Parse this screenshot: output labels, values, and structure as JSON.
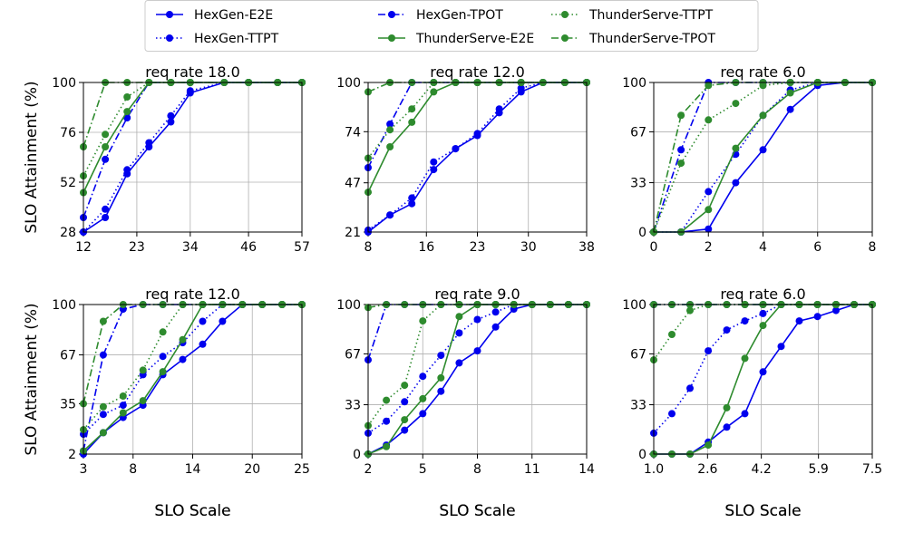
{
  "colors": {
    "hexgen": "#0000ee",
    "thunder": "#2e8b2e"
  },
  "legend": {
    "entries": [
      {
        "label": "HexGen-E2E",
        "series": "hexgen",
        "style": "solid"
      },
      {
        "label": "HexGen-TTPT",
        "series": "hexgen",
        "style": "dotted"
      },
      {
        "label": "HexGen-TPOT",
        "series": "hexgen",
        "style": "dashdot"
      },
      {
        "label": "ThunderServe-E2E",
        "series": "thunder",
        "style": "solid"
      },
      {
        "label": "ThunderServe-TTPT",
        "series": "thunder",
        "style": "dotted"
      },
      {
        "label": "ThunderServe-TPOT",
        "series": "thunder",
        "style": "dashdot"
      }
    ]
  },
  "ylabel": "SLO Attainment (%)",
  "xlabel": "SLO Scale",
  "chart_data": [
    {
      "type": "line",
      "title": "req rate 18.0",
      "xlim": [
        12,
        57
      ],
      "ylim": [
        28,
        100
      ],
      "xticks": [
        12,
        23,
        34,
        46,
        57
      ],
      "yticks": [
        28,
        52,
        76,
        100
      ],
      "x": [
        12,
        16.5,
        21,
        25.5,
        30,
        34,
        41,
        46,
        52,
        57
      ],
      "series": [
        {
          "name": "HexGen-E2E",
          "values": [
            28,
            35,
            56,
            69,
            81,
            95,
            100,
            100,
            100,
            100
          ]
        },
        {
          "name": "HexGen-TTPT",
          "values": [
            28,
            39,
            58,
            71,
            84,
            96,
            100,
            100,
            100,
            100
          ]
        },
        {
          "name": "HexGen-TPOT",
          "values": [
            35,
            63,
            83,
            100,
            100,
            100,
            100,
            100,
            100,
            100
          ]
        },
        {
          "name": "ThunderServe-E2E",
          "values": [
            47,
            69,
            86,
            100,
            100,
            100,
            100,
            100,
            100,
            100
          ]
        },
        {
          "name": "ThunderServe-TTPT",
          "values": [
            55,
            75,
            93,
            100,
            100,
            100,
            100,
            100,
            100,
            100
          ]
        },
        {
          "name": "ThunderServe-TPOT",
          "values": [
            69,
            100,
            100,
            100,
            100,
            100,
            100,
            100,
            100,
            100
          ]
        }
      ]
    },
    {
      "type": "line",
      "title": "req rate 12.0",
      "xlim": [
        8,
        38
      ],
      "ylim": [
        21,
        100
      ],
      "xticks": [
        8,
        16,
        23,
        30,
        38
      ],
      "yticks": [
        21,
        47,
        74,
        100
      ],
      "x": [
        8,
        11,
        14,
        17,
        20,
        23,
        26,
        29,
        32,
        35,
        38
      ],
      "series": [
        {
          "name": "HexGen-E2E",
          "values": [
            21,
            30,
            36,
            54,
            65,
            72,
            84,
            95,
            100,
            100,
            100
          ]
        },
        {
          "name": "HexGen-TTPT",
          "values": [
            22,
            30,
            39,
            58,
            65,
            73,
            86,
            97,
            100,
            100,
            100
          ]
        },
        {
          "name": "HexGen-TPOT",
          "values": [
            55,
            78,
            100,
            100,
            100,
            100,
            100,
            100,
            100,
            100,
            100
          ]
        },
        {
          "name": "ThunderServe-E2E",
          "values": [
            42,
            66,
            79,
            95,
            100,
            100,
            100,
            100,
            100,
            100,
            100
          ]
        },
        {
          "name": "ThunderServe-TTPT",
          "values": [
            60,
            75,
            86,
            100,
            100,
            100,
            100,
            100,
            100,
            100,
            100
          ]
        },
        {
          "name": "ThunderServe-TPOT",
          "values": [
            95,
            100,
            100,
            100,
            100,
            100,
            100,
            100,
            100,
            100,
            100
          ]
        }
      ]
    },
    {
      "type": "line",
      "title": "req rate 6.0",
      "xlim": [
        0,
        8
      ],
      "ylim": [
        0,
        100
      ],
      "xticks": [
        0,
        2,
        4,
        6,
        8
      ],
      "yticks": [
        0,
        33,
        67,
        100
      ],
      "x": [
        0,
        1,
        2,
        3,
        4,
        5,
        6,
        7,
        8
      ],
      "series": [
        {
          "name": "HexGen-E2E",
          "values": [
            0,
            0,
            2,
            33,
            55,
            82,
            98,
            100,
            100
          ]
        },
        {
          "name": "HexGen-TTPT",
          "values": [
            0,
            0,
            27,
            52,
            78,
            95,
            100,
            100,
            100
          ]
        },
        {
          "name": "HexGen-TPOT",
          "values": [
            0,
            55,
            100,
            100,
            100,
            100,
            100,
            100,
            100
          ]
        },
        {
          "name": "ThunderServe-E2E",
          "values": [
            0,
            0,
            15,
            56,
            78,
            93,
            100,
            100,
            100
          ]
        },
        {
          "name": "ThunderServe-TTPT",
          "values": [
            0,
            46,
            75,
            86,
            98,
            100,
            100,
            100,
            100
          ]
        },
        {
          "name": "ThunderServe-TPOT",
          "values": [
            0,
            78,
            98,
            100,
            100,
            100,
            100,
            100,
            100
          ]
        }
      ]
    },
    {
      "type": "line",
      "title": "req rate 12.0",
      "xlim": [
        3,
        25
      ],
      "ylim": [
        2,
        100
      ],
      "xticks": [
        3,
        8,
        14,
        20,
        25
      ],
      "yticks": [
        2,
        35,
        67,
        100
      ],
      "x": [
        3,
        5,
        7,
        9,
        11,
        13,
        15,
        17,
        19,
        21,
        23,
        25
      ],
      "series": [
        {
          "name": "HexGen-E2E",
          "values": [
            2,
            16,
            26,
            34,
            54,
            64,
            74,
            89,
            100,
            100,
            100,
            100
          ]
        },
        {
          "name": "HexGen-TTPT",
          "values": [
            15,
            28,
            34,
            54,
            66,
            75,
            89,
            100,
            100,
            100,
            100,
            100
          ]
        },
        {
          "name": "HexGen-TPOT",
          "values": [
            4,
            67,
            97,
            100,
            100,
            100,
            100,
            100,
            100,
            100,
            100,
            100
          ]
        },
        {
          "name": "ThunderServe-E2E",
          "values": [
            4,
            16,
            29,
            37,
            56,
            77,
            100,
            100,
            100,
            100,
            100,
            100
          ]
        },
        {
          "name": "ThunderServe-TTPT",
          "values": [
            18,
            33,
            40,
            57,
            82,
            100,
            100,
            100,
            100,
            100,
            100,
            100
          ]
        },
        {
          "name": "ThunderServe-TPOT",
          "values": [
            35,
            89,
            100,
            100,
            100,
            100,
            100,
            100,
            100,
            100,
            100,
            100
          ]
        }
      ]
    },
    {
      "type": "line",
      "title": "req rate 9.0",
      "xlim": [
        2,
        14
      ],
      "ylim": [
        0,
        100
      ],
      "xticks": [
        2,
        5,
        8,
        11,
        14
      ],
      "yticks": [
        0,
        33,
        67,
        100
      ],
      "x": [
        2,
        3,
        4,
        5,
        6,
        7,
        8,
        9,
        10,
        11,
        12,
        13,
        14
      ],
      "series": [
        {
          "name": "HexGen-E2E",
          "values": [
            0,
            6,
            16,
            27,
            42,
            61,
            69,
            85,
            97,
            100,
            100,
            100,
            100
          ]
        },
        {
          "name": "HexGen-TTPT",
          "values": [
            14,
            22,
            35,
            52,
            66,
            81,
            90,
            95,
            100,
            100,
            100,
            100,
            100
          ]
        },
        {
          "name": "HexGen-TPOT",
          "values": [
            63,
            100,
            100,
            100,
            100,
            100,
            100,
            100,
            100,
            100,
            100,
            100,
            100
          ]
        },
        {
          "name": "ThunderServe-E2E",
          "values": [
            0,
            5,
            23,
            37,
            51,
            92,
            100,
            100,
            100,
            100,
            100,
            100,
            100
          ]
        },
        {
          "name": "ThunderServe-TTPT",
          "values": [
            19,
            36,
            46,
            89,
            100,
            100,
            100,
            100,
            100,
            100,
            100,
            100,
            100
          ]
        },
        {
          "name": "ThunderServe-TPOT",
          "values": [
            98,
            100,
            100,
            100,
            100,
            100,
            100,
            100,
            100,
            100,
            100,
            100,
            100
          ]
        }
      ]
    },
    {
      "type": "line",
      "title": "req rate 6.0",
      "xlim": [
        1.0,
        7.5
      ],
      "ylim": [
        0,
        100
      ],
      "xticks": [
        "1.0",
        "2.6",
        "4.2",
        "5.9",
        "7.5"
      ],
      "yticks": [
        0,
        33,
        67,
        100
      ],
      "x": [
        1.0,
        1.54,
        2.08,
        2.62,
        3.17,
        3.71,
        4.25,
        4.79,
        5.33,
        5.87,
        6.42,
        6.96,
        7.5
      ],
      "series": [
        {
          "name": "HexGen-E2E",
          "values": [
            0,
            0,
            0,
            8,
            18,
            27,
            55,
            72,
            89,
            92,
            96,
            100,
            100
          ]
        },
        {
          "name": "HexGen-TTPT",
          "values": [
            14,
            27,
            44,
            69,
            83,
            89,
            94,
            100,
            100,
            100,
            100,
            100,
            100
          ]
        },
        {
          "name": "HexGen-TPOT",
          "values": [
            100,
            100,
            100,
            100,
            100,
            100,
            100,
            100,
            100,
            100,
            100,
            100,
            100
          ]
        },
        {
          "name": "ThunderServe-E2E",
          "values": [
            0,
            0,
            0,
            6,
            31,
            64,
            86,
            100,
            100,
            100,
            100,
            100,
            100
          ]
        },
        {
          "name": "ThunderServe-TTPT",
          "values": [
            63,
            80,
            96,
            100,
            100,
            100,
            100,
            100,
            100,
            100,
            100,
            100,
            100
          ]
        },
        {
          "name": "ThunderServe-TPOT",
          "values": [
            100,
            100,
            100,
            100,
            100,
            100,
            100,
            100,
            100,
            100,
            100,
            100,
            100
          ]
        }
      ]
    }
  ]
}
